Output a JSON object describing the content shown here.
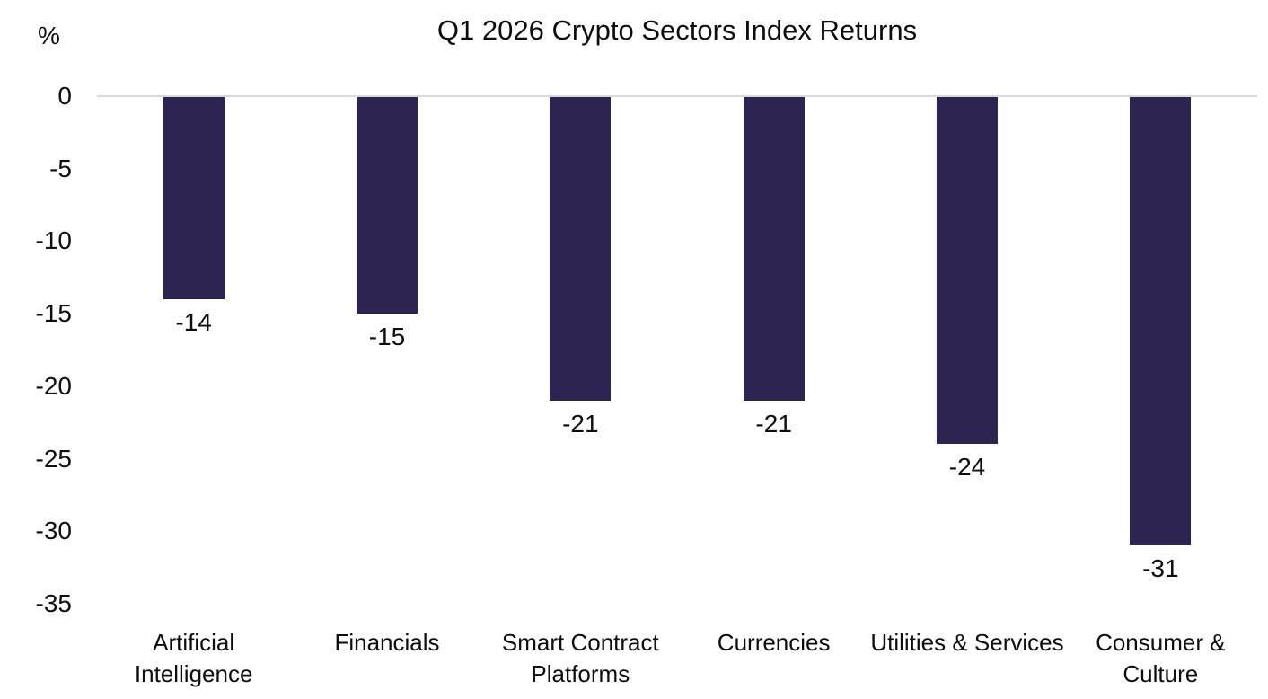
{
  "chart_data": {
    "type": "bar",
    "title": "Q1 2026 Crypto Sectors Index Returns",
    "unit_label": "%",
    "xlabel": "",
    "ylabel": "%",
    "categories": [
      "Artificial Intelligence",
      "Financials",
      "Smart Contract Platforms",
      "Currencies",
      "Utilities & Services",
      "Consumer & Culture"
    ],
    "values": [
      -14,
      -15,
      -21,
      -21,
      -24,
      -31
    ],
    "data_labels": [
      "-14",
      "-15",
      "-21",
      "-21",
      "-24",
      "-31"
    ],
    "y_ticks": [
      "0",
      "-5",
      "-10",
      "-15",
      "-20",
      "-25",
      "-30",
      "-35"
    ],
    "y_tick_values": [
      0,
      -5,
      -10,
      -15,
      -20,
      -25,
      -30,
      -35
    ],
    "ylim": [
      0,
      -35
    ],
    "grid": "zero-line-only",
    "legend": "none",
    "bar_color": "#2d2452",
    "gridline_color": "#d9d9d9",
    "text_color": "#0d0d0d"
  }
}
